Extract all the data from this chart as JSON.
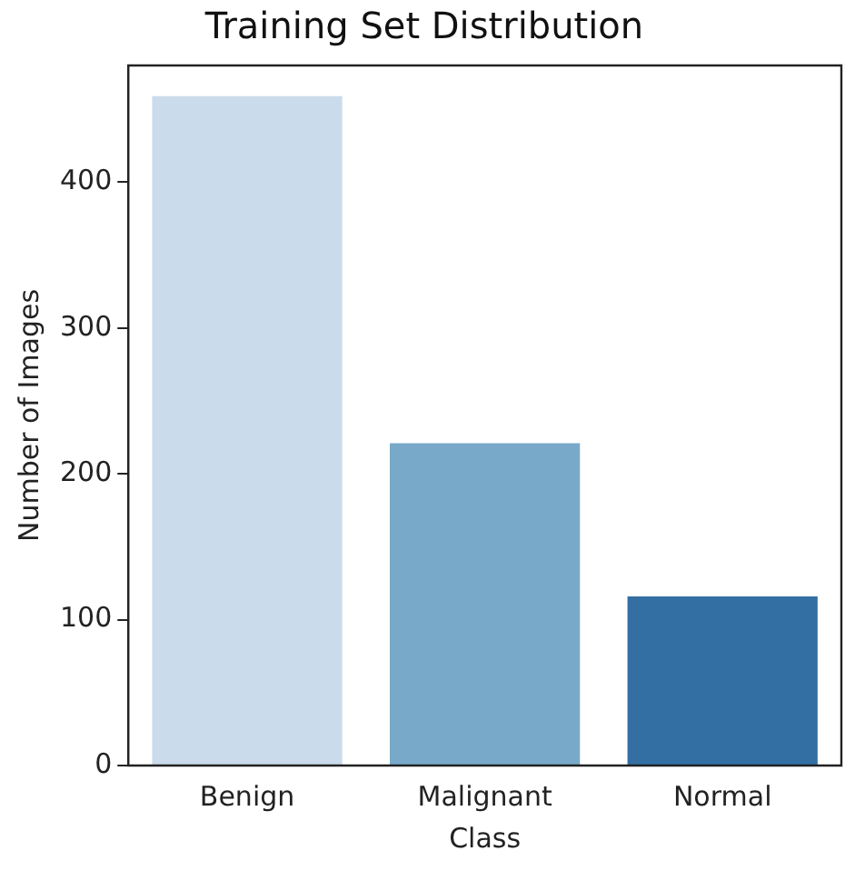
{
  "chart_data": {
    "type": "bar",
    "title": "Training Set Distribution",
    "xlabel": "Class",
    "ylabel": "Number of Images",
    "categories": [
      "Benign",
      "Malignant",
      "Normal"
    ],
    "values": [
      459,
      221,
      116
    ],
    "colors": [
      "#cadbeb",
      "#78a9c9",
      "#336fa3"
    ],
    "ylim": [
      0,
      480
    ],
    "yticks": [
      0,
      100,
      200,
      300,
      400
    ],
    "grid": false,
    "legend": false
  }
}
